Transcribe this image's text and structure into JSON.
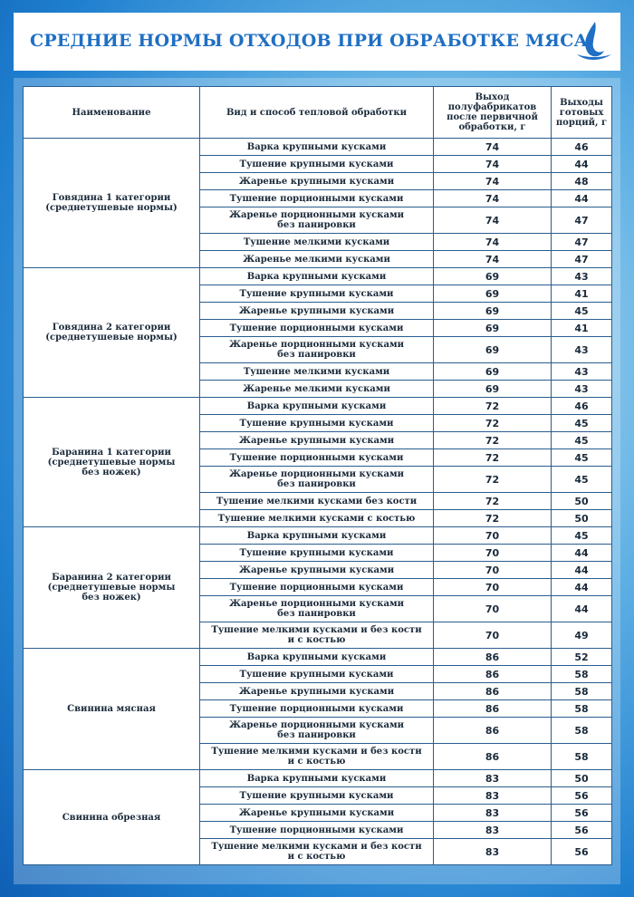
{
  "title": "СРЕДНИЕ НОРМЫ ОТХОДОВ ПРИ ОБРАБОТКЕ МЯСА",
  "table": {
    "header": [
      "Наименование",
      "Вид и способ тепловой обработки",
      "Выход\nполуфабрикатов\nпосле первичной\nобработки, г",
      "Выходы\nготовых\nпорций, г"
    ],
    "groups": [
      {
        "name": "Говядина 1 категории\n(среднетушевые нормы)",
        "rows": [
          [
            "Варка крупными кусками",
            74,
            46
          ],
          [
            "Тушение крупными кусками",
            74,
            44
          ],
          [
            "Жаренье крупными кусками",
            74,
            48
          ],
          [
            "Тушение порционными кусками",
            74,
            44
          ],
          [
            "Жаренье порционными кусками\nбез панировки",
            74,
            47
          ],
          [
            "Тушение мелкими кусками",
            74,
            47
          ],
          [
            "Жаренье мелкими кусками",
            74,
            47
          ]
        ]
      },
      {
        "name": "Говядина 2 категории\n(среднетушевые нормы)",
        "rows": [
          [
            "Варка крупными кусками",
            69,
            43
          ],
          [
            "Тушение крупными кусками",
            69,
            41
          ],
          [
            "Жаренье крупными кусками",
            69,
            45
          ],
          [
            "Тушение порционными кусками",
            69,
            41
          ],
          [
            "Жаренье порционными кусками\nбез панировки",
            69,
            43
          ],
          [
            "Тушение мелкими кусками",
            69,
            43
          ],
          [
            "Жаренье мелкими кусками",
            69,
            43
          ]
        ]
      },
      {
        "name": "Баранина 1 категории\n(среднетушевые нормы\nбез ножек)",
        "rows": [
          [
            "Варка крупными кусками",
            72,
            46
          ],
          [
            "Тушение крупными кусками",
            72,
            45
          ],
          [
            "Жаренье крупными кусками",
            72,
            45
          ],
          [
            "Тушение порционными кусками",
            72,
            45
          ],
          [
            "Жаренье порционными кусками\nбез панировки",
            72,
            45
          ],
          [
            "Тушение мелкими кусками без кости",
            72,
            50
          ],
          [
            "Тушение мелкими кусками с костью",
            72,
            50
          ]
        ]
      },
      {
        "name": "Баранина 2 категории\n(среднетушевые нормы\nбез ножек)",
        "rows": [
          [
            "Варка крупными кусками",
            70,
            45
          ],
          [
            "Тушение крупными кусками",
            70,
            44
          ],
          [
            "Жаренье крупными кусками",
            70,
            44
          ],
          [
            "Тушение порционными кусками",
            70,
            44
          ],
          [
            "Жаренье порционными кусками\nбез панировки",
            70,
            44
          ],
          [
            "Тушение мелкими кусками и без кости\nи с костью",
            70,
            49
          ]
        ]
      },
      {
        "name": "Свинина мясная",
        "rows": [
          [
            "Варка крупными кусками",
            86,
            52
          ],
          [
            "Тушение крупными кусками",
            86,
            58
          ],
          [
            "Жаренье крупными кусками",
            86,
            58
          ],
          [
            "Тушение порционными кусками",
            86,
            58
          ],
          [
            "Жаренье порционными кусками\nбез панировки",
            86,
            58
          ],
          [
            "Тушение мелкими кусками и без кости\nи с костью",
            86,
            58
          ]
        ]
      },
      {
        "name": "Свинина обрезная",
        "rows": [
          [
            "Варка крупными кусками",
            83,
            50
          ],
          [
            "Тушение крупными кусками",
            83,
            56
          ],
          [
            "Жаренье крупными кусками",
            83,
            56
          ],
          [
            "Тушение порционными кусками",
            83,
            56
          ],
          [
            "Тушение мелкими кусками и без кости\nи с костью",
            83,
            56
          ]
        ]
      }
    ]
  }
}
